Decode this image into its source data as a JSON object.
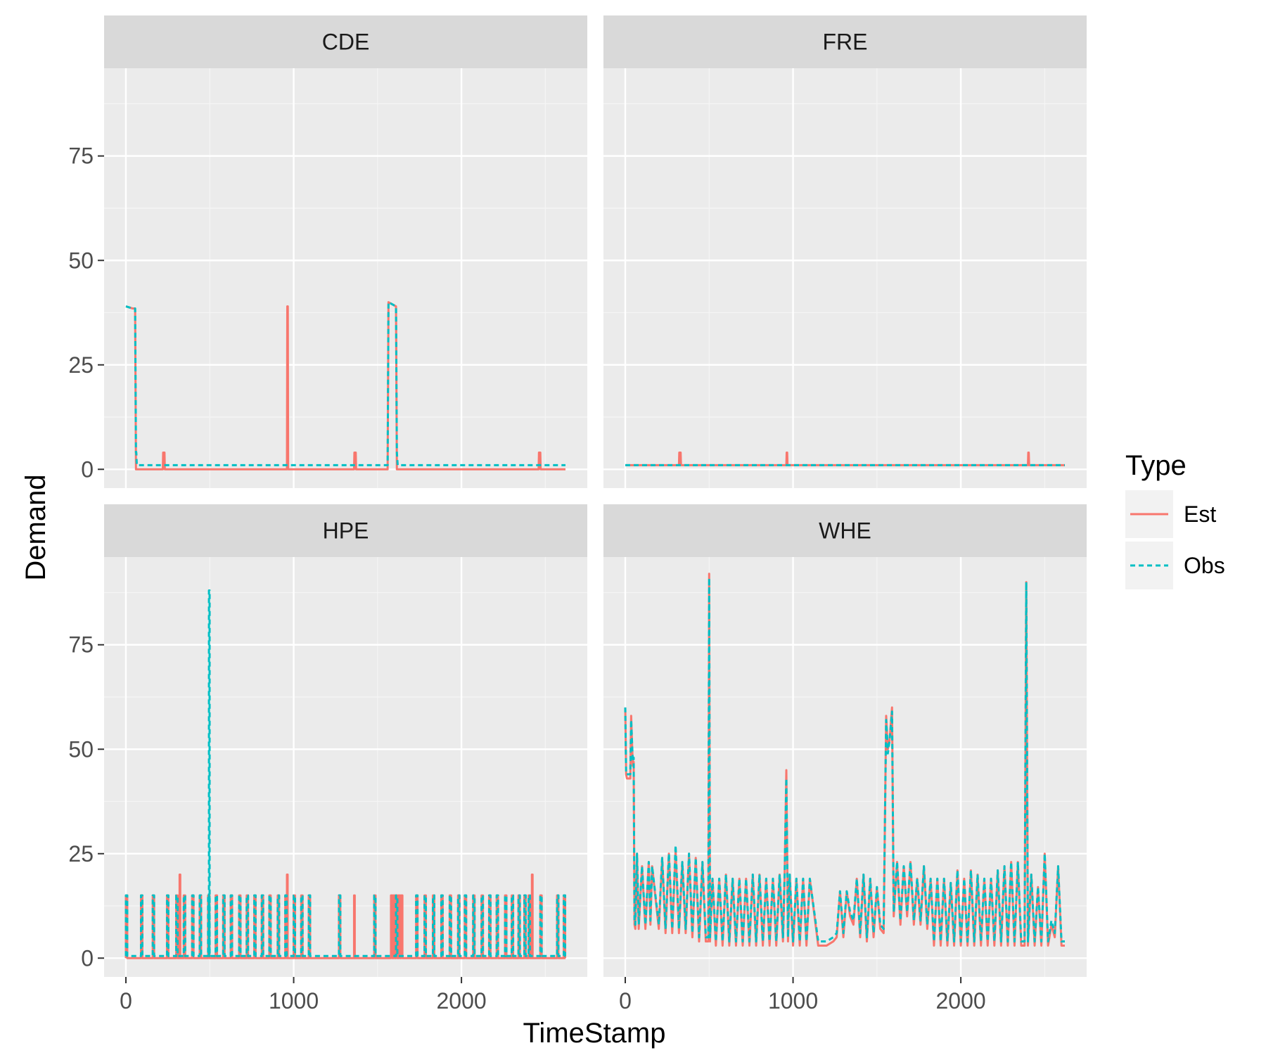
{
  "chart_data": {
    "type": "line",
    "xlabel": "TimeStamp",
    "ylabel": "Demand",
    "xlim": [
      -130,
      2750
    ],
    "ylim": [
      -4.5,
      96
    ],
    "x_ticks": [
      0,
      1000,
      2000
    ],
    "x_tick_labels": [
      "0",
      "1000",
      "2000"
    ],
    "y_ticks": [
      0,
      25,
      50,
      75
    ],
    "y_tick_labels": [
      "0",
      "25",
      "50",
      "75"
    ],
    "grid": true,
    "legend": {
      "title": "Type",
      "position": "right",
      "entries": [
        {
          "name": "Est",
          "color": "#F8766D",
          "linetype": "solid"
        },
        {
          "name": "Obs",
          "color": "#00BFC4",
          "linetype": "dashed"
        }
      ]
    },
    "panels": [
      {
        "name": "CDE",
        "series": [
          {
            "name": "Est",
            "color": "#F8766D",
            "x": [
              0,
              40,
              55,
              60,
              220,
              222,
              230,
              232,
              960,
              962,
              965,
              967,
              1360,
              1362,
              1370,
              1372,
              1560,
              1565,
              1610,
              1615,
              2460,
              2462,
              2470,
              2472,
              2620
            ],
            "y": [
              39,
              38.5,
              38.5,
              0,
              0,
              4,
              4,
              0,
              0,
              39,
              39,
              0,
              0,
              4,
              4,
              0,
              0,
              40,
              39,
              0,
              0,
              4,
              4,
              0,
              0
            ]
          },
          {
            "name": "Obs",
            "color": "#00BFC4",
            "x": [
              0,
              40,
              55,
              60,
              62,
              65,
              1560,
              1565,
              1610,
              1615,
              1620,
              2620
            ],
            "y": [
              39,
              38.5,
              38.5,
              4,
              4,
              1,
              1,
              40,
              39,
              4,
              1,
              1
            ]
          }
        ]
      },
      {
        "name": "FRE",
        "series": [
          {
            "name": "Est",
            "color": "#F8766D",
            "x": [
              0,
              320,
              322,
              330,
              332,
              960,
              962,
              965,
              967,
              2400,
              2402,
              2405,
              2407,
              2620
            ],
            "y": [
              1,
              1,
              4,
              4,
              1,
              1,
              4,
              4,
              1,
              1,
              4,
              4,
              1,
              1
            ]
          },
          {
            "name": "Obs",
            "color": "#00BFC4",
            "x": [
              0,
              2620
            ],
            "y": [
              1,
              1
            ]
          }
        ]
      },
      {
        "name": "HPE",
        "series": [
          {
            "name": "Est",
            "color": "#F8766D",
            "pulses": {
              "low": 0,
              "high": 15,
              "width": 8,
              "x": [
                0,
                90,
                160,
                245,
                300,
                345,
                395,
                440,
                490,
                535,
                580,
                625,
                675,
                720,
                765,
                810,
                855,
                905,
                950,
                1000,
                1045,
                1090,
                1270,
                1480,
                1580,
                1595,
                1610,
                1625,
                1640,
                1730,
                1780,
                1830,
                1880,
                1930,
                1980,
                2020,
                2070,
                2120,
                2165,
                2210,
                2260,
                2300,
                2340,
                2375,
                2400,
                2470,
                2570,
                2610
              ],
              "spikes": [
                {
                  "x": 320,
                  "y": 20
                },
                {
                  "x": 960,
                  "y": 20
                },
                {
                  "x": 1360,
                  "y": 15
                },
                {
                  "x": 2420,
                  "y": 20
                }
              ]
            }
          },
          {
            "name": "Obs",
            "color": "#00BFC4",
            "pulses": {
              "low": 0.5,
              "high": 15,
              "width": 8,
              "x": [
                0,
                90,
                160,
                245,
                300,
                345,
                395,
                440,
                490,
                535,
                580,
                625,
                675,
                720,
                765,
                810,
                855,
                905,
                950,
                1000,
                1045,
                1090,
                1270,
                1480,
                1610,
                1730,
                1780,
                1830,
                1880,
                1930,
                1980,
                2020,
                2070,
                2120,
                2165,
                2210,
                2260,
                2300,
                2340,
                2375,
                2400,
                2470,
                2570,
                2610
              ],
              "spikes": [
                {
                  "x": 495,
                  "y": 88
                }
              ]
            }
          }
        ]
      },
      {
        "name": "WHE",
        "series": [
          {
            "name": "Est",
            "color": "#F8766D",
            "x": [
              0,
              5,
              10,
              30,
              35,
              45,
              50,
              55,
              60,
              70,
              80,
              100,
              120,
              140,
              150,
              160,
              200,
              220,
              240,
              260,
              280,
              300,
              320,
              340,
              360,
              380,
              400,
              420,
              440,
              460,
              480,
              495,
              500,
              505,
              520,
              540,
              560,
              580,
              600,
              620,
              640,
              660,
              680,
              700,
              720,
              740,
              760,
              780,
              800,
              820,
              840,
              860,
              880,
              900,
              920,
              940,
              950,
              960,
              970,
              980,
              1000,
              1020,
              1040,
              1060,
              1080,
              1100,
              1150,
              1200,
              1240,
              1260,
              1280,
              1300,
              1320,
              1340,
              1360,
              1380,
              1400,
              1420,
              1440,
              1460,
              1480,
              1500,
              1520,
              1540,
              1555,
              1565,
              1575,
              1590,
              1600,
              1620,
              1640,
              1660,
              1680,
              1700,
              1720,
              1740,
              1760,
              1780,
              1800,
              1820,
              1840,
              1860,
              1880,
              1900,
              1920,
              1940,
              1960,
              1980,
              2000,
              2020,
              2040,
              2060,
              2080,
              2100,
              2120,
              2140,
              2160,
              2180,
              2200,
              2220,
              2240,
              2260,
              2280,
              2300,
              2320,
              2340,
              2360,
              2380,
              2390,
              2400,
              2420,
              2440,
              2460,
              2480,
              2500,
              2520,
              2540,
              2560,
              2580,
              2600,
              2620
            ],
            "y": [
              60,
              44,
              43,
              43,
              58,
              46,
              47,
              8,
              7,
              25,
              7,
              22,
              7,
              23,
              8,
              22,
              7,
              24,
              6,
              25,
              6,
              26,
              6,
              23,
              6,
              25,
              5,
              24,
              4,
              23,
              4,
              4,
              92,
              4,
              19,
              3,
              19,
              3,
              20,
              3,
              19,
              3,
              19,
              3,
              19,
              3,
              20,
              3,
              20,
              3,
              19,
              3,
              19,
              3,
              20,
              4,
              20,
              45,
              4,
              20,
              3,
              19,
              3,
              19,
              3,
              19,
              3,
              3,
              4,
              5,
              16,
              5,
              16,
              10,
              8,
              19,
              5,
              20,
              4,
              19,
              5,
              17,
              7,
              6,
              58,
              50,
              52,
              60,
              10,
              23,
              8,
              22,
              10,
              23,
              8,
              19,
              8,
              22,
              7,
              19,
              3,
              19,
              3,
              19,
              3,
              18,
              3,
              21,
              3,
              19,
              3,
              21,
              3,
              20,
              3,
              19,
              3,
              19,
              3,
              21,
              3,
              22,
              3,
              23,
              3,
              23,
              3,
              3,
              90,
              3,
              20,
              3,
              17,
              3,
              25,
              3,
              8,
              5,
              22,
              3,
              3
            ]
          },
          {
            "name": "Obs",
            "color": "#00BFC4",
            "x": [
              0,
              5,
              10,
              30,
              35,
              45,
              50,
              55,
              60,
              70,
              80,
              100,
              120,
              140,
              150,
              160,
              200,
              220,
              240,
              260,
              280,
              300,
              320,
              340,
              360,
              380,
              400,
              420,
              440,
              460,
              480,
              495,
              500,
              505,
              520,
              540,
              560,
              580,
              600,
              620,
              640,
              660,
              680,
              700,
              720,
              740,
              760,
              780,
              800,
              820,
              840,
              860,
              880,
              900,
              920,
              940,
              950,
              960,
              970,
              980,
              1000,
              1020,
              1040,
              1060,
              1080,
              1100,
              1150,
              1200,
              1240,
              1260,
              1280,
              1300,
              1320,
              1340,
              1360,
              1380,
              1400,
              1420,
              1440,
              1460,
              1480,
              1500,
              1520,
              1540,
              1555,
              1565,
              1575,
              1590,
              1600,
              1620,
              1640,
              1660,
              1680,
              1700,
              1720,
              1740,
              1760,
              1780,
              1800,
              1820,
              1840,
              1860,
              1880,
              1900,
              1920,
              1940,
              1960,
              1980,
              2000,
              2020,
              2040,
              2060,
              2080,
              2100,
              2120,
              2140,
              2160,
              2180,
              2200,
              2220,
              2240,
              2260,
              2280,
              2300,
              2320,
              2340,
              2360,
              2380,
              2390,
              2400,
              2420,
              2440,
              2460,
              2480,
              2500,
              2520,
              2540,
              2560,
              2580,
              2600,
              2620
            ],
            "y": [
              60,
              44,
              44,
              44,
              57,
              47,
              48,
              9,
              8,
              25,
              8,
              22,
              8,
              23,
              9,
              22,
              8,
              24,
              7,
              25,
              7,
              27,
              7,
              23,
              7,
              25,
              6,
              24,
              5,
              23,
              5,
              5,
              91,
              5,
              19,
              4,
              19,
              4,
              20,
              4,
              19,
              4,
              19,
              4,
              19,
              4,
              20,
              4,
              20,
              4,
              19,
              4,
              19,
              4,
              20,
              5,
              20,
              43,
              5,
              20,
              4,
              19,
              4,
              19,
              4,
              19,
              4,
              4,
              5,
              6,
              16,
              6,
              16,
              11,
              9,
              19,
              6,
              20,
              5,
              19,
              6,
              17,
              8,
              7,
              57,
              49,
              52,
              59,
              11,
              23,
              9,
              22,
              11,
              23,
              9,
              19,
              9,
              22,
              8,
              19,
              4,
              19,
              4,
              19,
              4,
              18,
              4,
              21,
              4,
              19,
              4,
              21,
              4,
              20,
              4,
              19,
              4,
              19,
              4,
              21,
              4,
              22,
              4,
              23,
              4,
              23,
              4,
              4,
              90,
              4,
              20,
              4,
              17,
              4,
              25,
              4,
              9,
              6,
              22,
              4,
              4
            ]
          }
        ]
      }
    ]
  }
}
